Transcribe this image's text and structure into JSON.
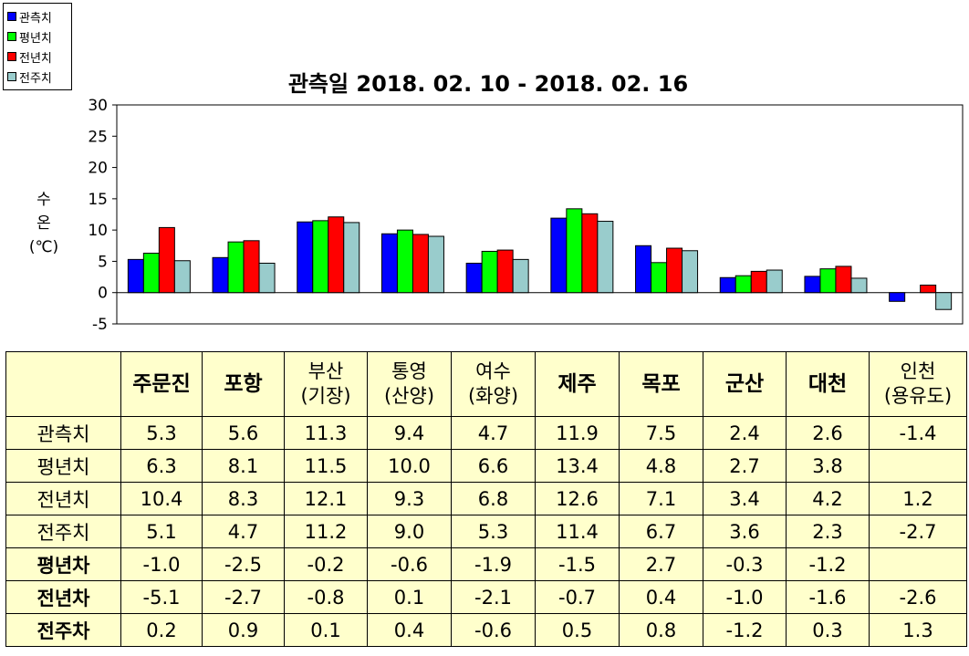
{
  "chart_data": {
    "type": "bar",
    "title": "관측일 2018. 02. 10 - 2018. 02. 16",
    "ylabel_lines": [
      "수",
      "온",
      "(℃)"
    ],
    "ylim": [
      -5,
      30
    ],
    "yticks": [
      30,
      25,
      20,
      15,
      10,
      5,
      0,
      -5
    ],
    "grid": false,
    "legend_position": "top-left",
    "categories": [
      "주문진",
      "포항",
      "부산 (기장)",
      "통영 (산양)",
      "여수 (화양)",
      "제주",
      "목포",
      "군산",
      "대천",
      "인천 (용유도)"
    ],
    "series": [
      {
        "name": "관측치",
        "color": "#0000ff",
        "values": [
          5.3,
          5.6,
          11.3,
          9.4,
          4.7,
          11.9,
          7.5,
          2.4,
          2.6,
          -1.4
        ]
      },
      {
        "name": "평년치",
        "color": "#00ff00",
        "values": [
          6.3,
          8.1,
          11.5,
          10.0,
          6.6,
          13.4,
          4.8,
          2.7,
          3.8,
          null
        ]
      },
      {
        "name": "전년치",
        "color": "#ff0000",
        "values": [
          10.4,
          8.3,
          12.1,
          9.3,
          6.8,
          12.6,
          7.1,
          3.4,
          4.2,
          1.2
        ]
      },
      {
        "name": "전주치",
        "color": "#99cccc",
        "values": [
          5.1,
          4.7,
          11.2,
          9.0,
          5.3,
          11.4,
          6.7,
          3.6,
          2.3,
          -2.7
        ]
      }
    ]
  },
  "table": {
    "header_top": [
      "주문진",
      "포항",
      "부산",
      "통영",
      "여수",
      "제주",
      "목포",
      "군산",
      "대천",
      "인천"
    ],
    "header_sub": [
      "",
      "",
      "(기장)",
      "(산양)",
      "(화양)",
      "",
      "",
      "",
      "",
      "(용유도)"
    ],
    "rows": [
      {
        "label": "관측치",
        "bold": false,
        "cells": [
          "5.3",
          "5.6",
          "11.3",
          "9.4",
          "4.7",
          "11.9",
          "7.5",
          "2.4",
          "2.6",
          "-1.4"
        ]
      },
      {
        "label": "평년치",
        "bold": false,
        "cells": [
          "6.3",
          "8.1",
          "11.5",
          "10.0",
          "6.6",
          "13.4",
          "4.8",
          "2.7",
          "3.8",
          ""
        ]
      },
      {
        "label": "전년치",
        "bold": false,
        "cells": [
          "10.4",
          "8.3",
          "12.1",
          "9.3",
          "6.8",
          "12.6",
          "7.1",
          "3.4",
          "4.2",
          "1.2"
        ]
      },
      {
        "label": "전주치",
        "bold": false,
        "cells": [
          "5.1",
          "4.7",
          "11.2",
          "9.0",
          "5.3",
          "11.4",
          "6.7",
          "3.6",
          "2.3",
          "-2.7"
        ]
      },
      {
        "label": "평년차",
        "bold": true,
        "cells": [
          "-1.0",
          "-2.5",
          "-0.2",
          "-0.6",
          "-1.9",
          "-1.5",
          "2.7",
          "-0.3",
          "-1.2",
          ""
        ]
      },
      {
        "label": "전년차",
        "bold": true,
        "cells": [
          "-5.1",
          "-2.7",
          "-0.8",
          "0.1",
          "-2.1",
          "-0.7",
          "0.4",
          "-1.0",
          "-1.6",
          "-2.6"
        ]
      },
      {
        "label": "전주차",
        "bold": true,
        "cells": [
          "0.2",
          "0.9",
          "0.1",
          "0.4",
          "-0.6",
          "0.5",
          "0.8",
          "-1.2",
          "0.3",
          "1.3"
        ]
      }
    ]
  }
}
